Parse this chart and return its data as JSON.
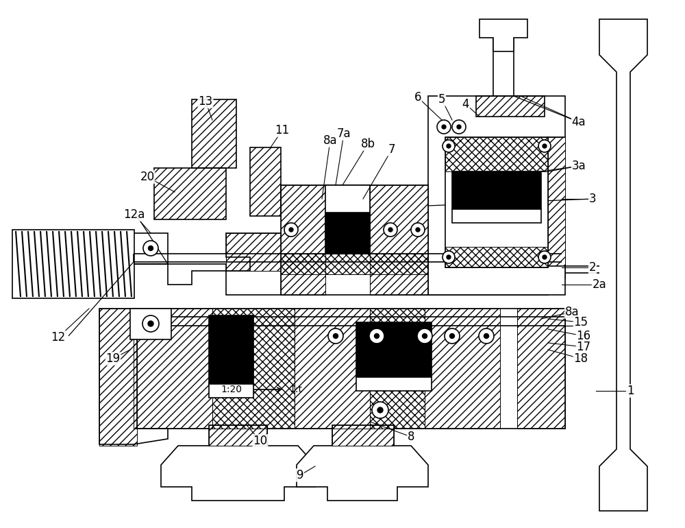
{
  "background_color": "#ffffff",
  "line_color": "#000000",
  "labels_data": [
    [
      "1",
      920,
      570,
      870,
      570
    ],
    [
      "2",
      865,
      390,
      820,
      390
    ],
    [
      "2a",
      875,
      415,
      820,
      415
    ],
    [
      "3",
      865,
      290,
      820,
      290
    ],
    [
      "3a",
      845,
      242,
      790,
      250
    ],
    [
      "4",
      680,
      152,
      700,
      170
    ],
    [
      "4a",
      845,
      178,
      760,
      140
    ],
    [
      "5",
      645,
      145,
      660,
      175
    ],
    [
      "6",
      610,
      142,
      645,
      175
    ],
    [
      "7",
      572,
      218,
      530,
      290
    ],
    [
      "7a",
      502,
      195,
      490,
      270
    ],
    [
      "8",
      600,
      637,
      540,
      615
    ],
    [
      "8a",
      482,
      205,
      470,
      290
    ],
    [
      "8b",
      537,
      210,
      500,
      270
    ],
    [
      "8a",
      835,
      455,
      790,
      465
    ],
    [
      "9",
      438,
      693,
      460,
      680
    ],
    [
      "10",
      380,
      643,
      360,
      620
    ],
    [
      "11",
      412,
      190,
      395,
      215
    ],
    [
      "12",
      85,
      492,
      130,
      450
    ],
    [
      "12a",
      196,
      313,
      220,
      340
    ],
    [
      "13",
      300,
      148,
      310,
      175
    ],
    [
      "15",
      848,
      470,
      800,
      465
    ],
    [
      "16",
      852,
      490,
      800,
      480
    ],
    [
      "17",
      852,
      506,
      800,
      500
    ],
    [
      "18",
      848,
      523,
      800,
      510
    ],
    [
      "19",
      165,
      523,
      190,
      510
    ],
    [
      "20",
      215,
      258,
      255,
      280
    ]
  ],
  "text_1_20": "1:20",
  "text_1_t": "1:t"
}
